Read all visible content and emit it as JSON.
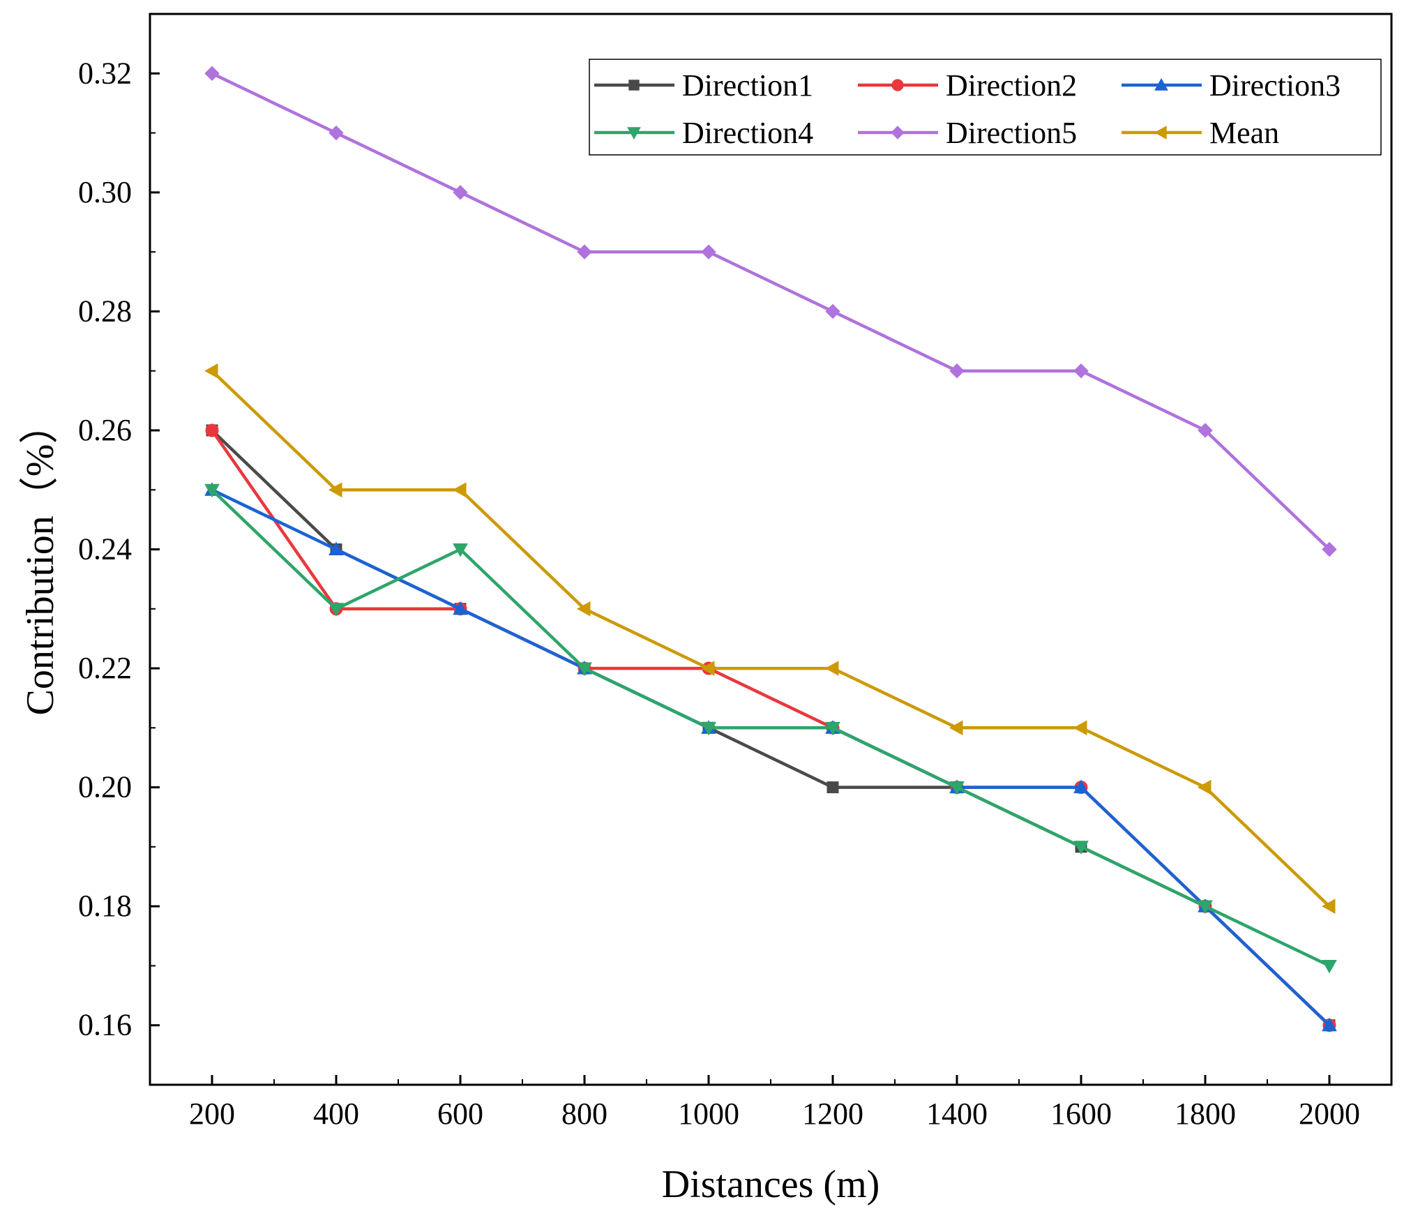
{
  "chart_data": {
    "type": "line",
    "title": "",
    "xlabel": "Distances (m)",
    "ylabel": "Contribution（%）",
    "x": [
      200,
      400,
      600,
      800,
      1000,
      1200,
      1400,
      1600,
      1800,
      2000
    ],
    "xlim": [
      100,
      2100
    ],
    "ylim": [
      0.15,
      0.33
    ],
    "xticks": [
      "200",
      "400",
      "600",
      "800",
      "1000",
      "1200",
      "1400",
      "1600",
      "1800",
      "2000"
    ],
    "yticks": [
      "0.16",
      "0.18",
      "0.20",
      "0.22",
      "0.24",
      "0.26",
      "0.28",
      "0.30",
      "0.32"
    ],
    "grid": false,
    "legend_position": "top-right",
    "series": [
      {
        "name": "Direction1",
        "color": "#4a4a4a",
        "marker": "square",
        "values": [
          0.26,
          0.24,
          0.23,
          0.22,
          0.21,
          0.2,
          0.2,
          0.19,
          0.18,
          0.16
        ]
      },
      {
        "name": "Direction2",
        "color": "#e8383d",
        "marker": "circle",
        "values": [
          0.26,
          0.23,
          0.23,
          0.22,
          0.22,
          0.21,
          0.2,
          0.2,
          0.18,
          0.16
        ]
      },
      {
        "name": "Direction3",
        "color": "#1b63d4",
        "marker": "triangle-up",
        "values": [
          0.25,
          0.24,
          0.23,
          0.22,
          0.21,
          0.21,
          0.2,
          0.2,
          0.18,
          0.16
        ]
      },
      {
        "name": "Direction4",
        "color": "#2ea56a",
        "marker": "triangle-down",
        "values": [
          0.25,
          0.23,
          0.24,
          0.22,
          0.21,
          0.21,
          0.2,
          0.19,
          0.18,
          0.17
        ]
      },
      {
        "name": "Direction5",
        "color": "#b072dc",
        "marker": "diamond",
        "values": [
          0.32,
          0.31,
          0.3,
          0.29,
          0.29,
          0.28,
          0.27,
          0.27,
          0.26,
          0.24
        ]
      },
      {
        "name": "Mean",
        "color": "#cc9a06",
        "marker": "triangle-left",
        "values": [
          0.27,
          0.25,
          0.25,
          0.23,
          0.22,
          0.22,
          0.21,
          0.21,
          0.2,
          0.18
        ]
      }
    ]
  }
}
